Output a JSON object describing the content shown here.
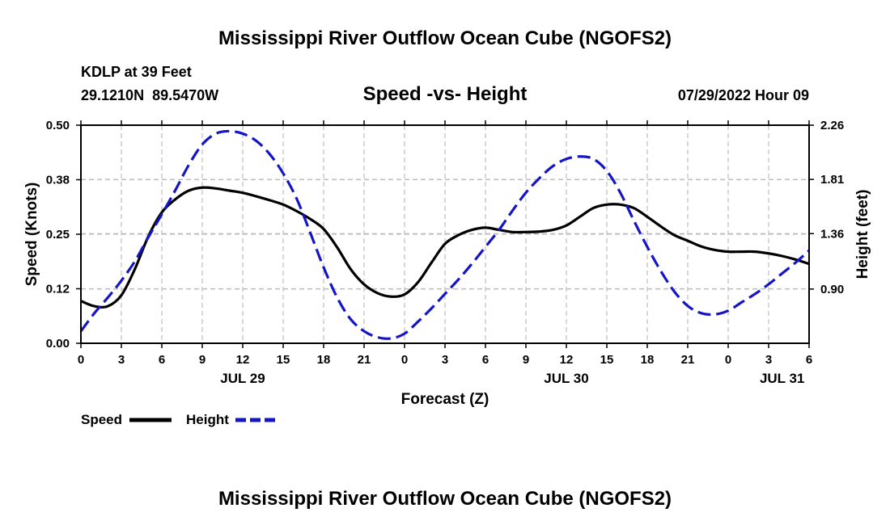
{
  "chart_data": {
    "type": "line",
    "title": "Mississippi River Outflow Ocean Cube (NGOFS2)",
    "subtitle": "Speed -vs- Height",
    "station": "KDLP at 39 Feet",
    "location": "29.1210N  89.5470W",
    "run_time": "07/29/2022 Hour 09",
    "footer_title": "Mississippi River Outflow Ocean Cube (NGOFS2)",
    "xlabel": "Forecast (Z)",
    "ylabel_left": "Speed (Knots)",
    "ylabel_right": "Height (feet)",
    "x_range_hours": [
      0,
      54
    ],
    "x_ticks": [
      {
        "hour": 0,
        "label": "0"
      },
      {
        "hour": 3,
        "label": "3"
      },
      {
        "hour": 6,
        "label": "6"
      },
      {
        "hour": 9,
        "label": "9"
      },
      {
        "hour": 12,
        "label": "12"
      },
      {
        "hour": 15,
        "label": "15"
      },
      {
        "hour": 18,
        "label": "18"
      },
      {
        "hour": 21,
        "label": "21"
      },
      {
        "hour": 24,
        "label": "0"
      },
      {
        "hour": 27,
        "label": "3"
      },
      {
        "hour": 30,
        "label": "6"
      },
      {
        "hour": 33,
        "label": "9"
      },
      {
        "hour": 36,
        "label": "12"
      },
      {
        "hour": 39,
        "label": "15"
      },
      {
        "hour": 42,
        "label": "18"
      },
      {
        "hour": 45,
        "label": "21"
      },
      {
        "hour": 48,
        "label": "0"
      },
      {
        "hour": 51,
        "label": "3"
      },
      {
        "hour": 54,
        "label": "6"
      }
    ],
    "date_labels": [
      {
        "hour": 12,
        "label": "JUL 29"
      },
      {
        "hour": 36,
        "label": "JUL 30"
      },
      {
        "hour": 52,
        "label": "JUL 31"
      }
    ],
    "y_left": {
      "min": 0,
      "max": 0.5,
      "ticks": [
        0.0,
        0.125,
        0.25,
        0.375,
        0.5
      ],
      "tick_labels": [
        "0.00",
        "0.12",
        "0.25",
        "0.38",
        "0.50"
      ]
    },
    "y_right": {
      "min": 0.45,
      "max": 2.26,
      "ticks": [
        0.9,
        1.36,
        1.81,
        2.26
      ],
      "tick_labels": [
        "0.90",
        "1.36",
        "1.81",
        "2.26"
      ]
    },
    "grid": true,
    "legend": {
      "position": "bottom-left",
      "items": [
        {
          "name": "Speed"
        },
        {
          "name": "Height"
        }
      ]
    },
    "series": [
      {
        "name": "Speed",
        "axis": "left",
        "color": "#000000",
        "style": "solid",
        "points": [
          [
            0,
            0.097
          ],
          [
            1,
            0.085
          ],
          [
            2,
            0.085
          ],
          [
            3,
            0.11
          ],
          [
            4,
            0.17
          ],
          [
            5,
            0.245
          ],
          [
            6,
            0.3
          ],
          [
            7,
            0.33
          ],
          [
            8,
            0.35
          ],
          [
            9,
            0.357
          ],
          [
            10,
            0.355
          ],
          [
            11,
            0.35
          ],
          [
            12,
            0.345
          ],
          [
            13,
            0.337
          ],
          [
            14,
            0.328
          ],
          [
            15,
            0.318
          ],
          [
            16,
            0.303
          ],
          [
            17,
            0.285
          ],
          [
            18,
            0.262
          ],
          [
            19,
            0.22
          ],
          [
            20,
            0.17
          ],
          [
            21,
            0.135
          ],
          [
            22,
            0.115
          ],
          [
            23,
            0.107
          ],
          [
            24,
            0.112
          ],
          [
            25,
            0.14
          ],
          [
            26,
            0.185
          ],
          [
            27,
            0.228
          ],
          [
            28,
            0.248
          ],
          [
            29,
            0.26
          ],
          [
            30,
            0.265
          ],
          [
            31,
            0.26
          ],
          [
            32,
            0.255
          ],
          [
            33,
            0.255
          ],
          [
            34,
            0.256
          ],
          [
            35,
            0.26
          ],
          [
            36,
            0.27
          ],
          [
            37,
            0.29
          ],
          [
            38,
            0.31
          ],
          [
            39,
            0.318
          ],
          [
            40,
            0.318
          ],
          [
            41,
            0.31
          ],
          [
            42,
            0.29
          ],
          [
            43,
            0.268
          ],
          [
            44,
            0.248
          ],
          [
            45,
            0.235
          ],
          [
            46,
            0.222
          ],
          [
            47,
            0.214
          ],
          [
            48,
            0.21
          ],
          [
            49,
            0.21
          ],
          [
            50,
            0.21
          ],
          [
            51,
            0.206
          ],
          [
            52,
            0.2
          ],
          [
            53,
            0.192
          ],
          [
            54,
            0.182
          ]
        ]
      },
      {
        "name": "Height",
        "axis": "right",
        "color": "#1515c8",
        "style": "dashed",
        "points": [
          [
            0,
            0.55
          ],
          [
            1,
            0.7
          ],
          [
            2,
            0.83
          ],
          [
            3,
            0.97
          ],
          [
            4,
            1.13
          ],
          [
            5,
            1.33
          ],
          [
            6,
            1.52
          ],
          [
            7,
            1.72
          ],
          [
            8,
            1.93
          ],
          [
            9,
            2.1
          ],
          [
            10,
            2.19
          ],
          [
            11,
            2.21
          ],
          [
            12,
            2.19
          ],
          [
            13,
            2.13
          ],
          [
            14,
            2.02
          ],
          [
            15,
            1.86
          ],
          [
            16,
            1.65
          ],
          [
            17,
            1.37
          ],
          [
            18,
            1.08
          ],
          [
            19,
            0.83
          ],
          [
            20,
            0.65
          ],
          [
            21,
            0.55
          ],
          [
            22,
            0.5
          ],
          [
            23,
            0.49
          ],
          [
            24,
            0.53
          ],
          [
            25,
            0.63
          ],
          [
            26,
            0.74
          ],
          [
            27,
            0.86
          ],
          [
            28,
            0.98
          ],
          [
            29,
            1.11
          ],
          [
            30,
            1.25
          ],
          [
            31,
            1.39
          ],
          [
            32,
            1.55
          ],
          [
            33,
            1.7
          ],
          [
            34,
            1.82
          ],
          [
            35,
            1.92
          ],
          [
            36,
            1.98
          ],
          [
            37,
            2.0
          ],
          [
            38,
            1.98
          ],
          [
            39,
            1.88
          ],
          [
            40,
            1.7
          ],
          [
            41,
            1.47
          ],
          [
            42,
            1.25
          ],
          [
            43,
            1.05
          ],
          [
            44,
            0.88
          ],
          [
            45,
            0.76
          ],
          [
            46,
            0.7
          ],
          [
            47,
            0.69
          ],
          [
            48,
            0.72
          ],
          [
            49,
            0.79
          ],
          [
            50,
            0.86
          ],
          [
            51,
            0.94
          ],
          [
            52,
            1.03
          ],
          [
            53,
            1.12
          ],
          [
            54,
            1.22
          ]
        ]
      }
    ]
  }
}
